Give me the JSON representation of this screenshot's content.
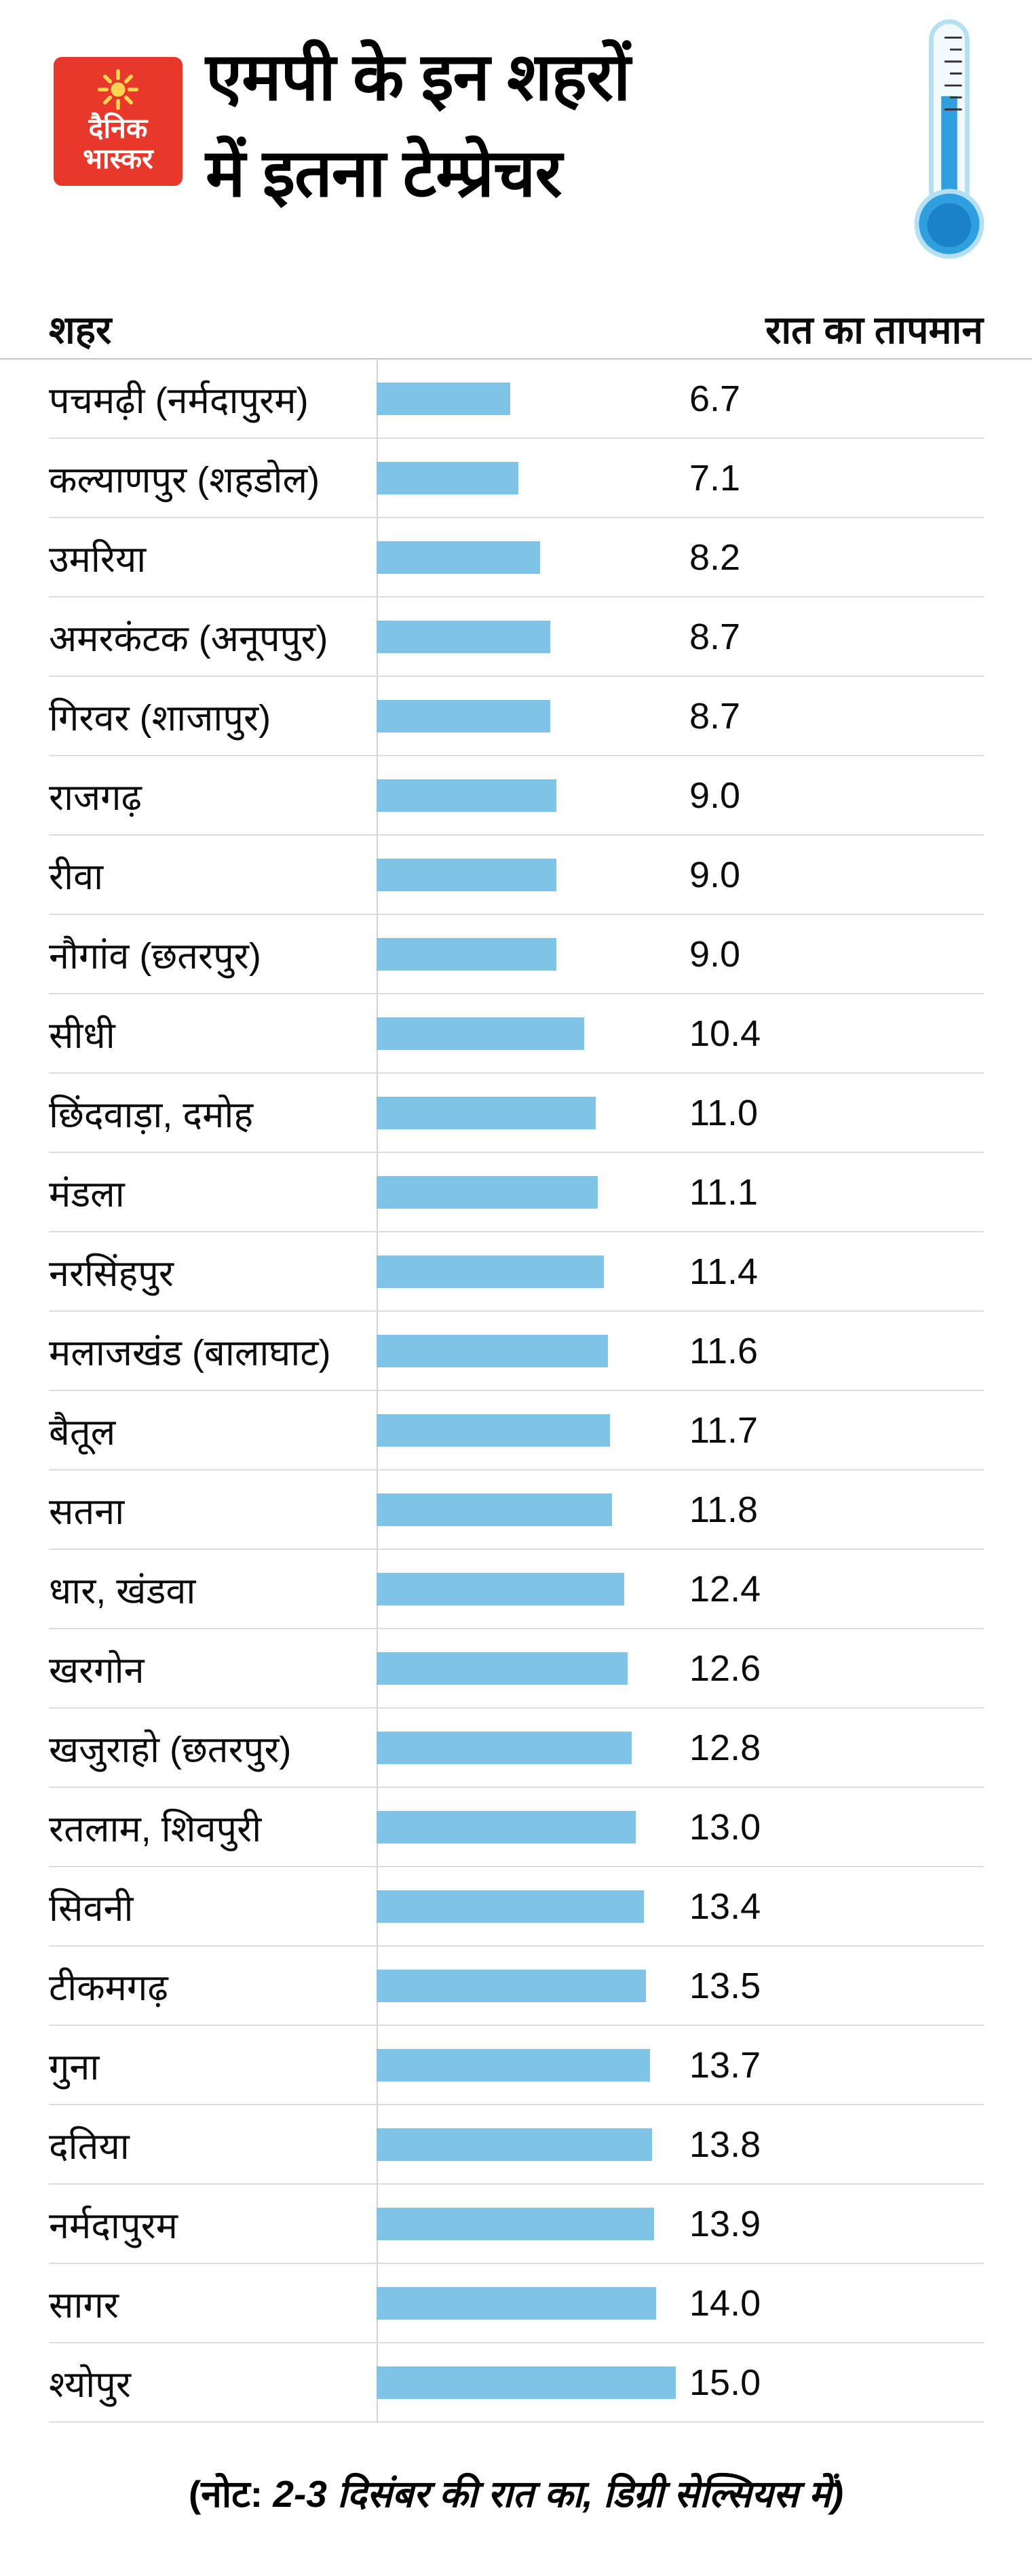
{
  "header": {
    "logo_line1": "दैनिक",
    "logo_line2": "भास्कर",
    "title_line1": "एमपी के इन शहरों",
    "title_line2": "में इतना टेम्प्रेचर"
  },
  "table": {
    "col_city": "शहर",
    "col_temp": "रात का तापमान"
  },
  "chart_data": {
    "type": "bar",
    "orientation": "horizontal",
    "title": "एमपी के इन शहरों में इतना टेम्प्रेचर",
    "xlabel": "रात का तापमान (डिग्री सेल्सियस)",
    "ylabel": "शहर",
    "xlim": [
      0,
      15
    ],
    "grid": false,
    "legend": "none",
    "bar_color": "#7fc3e6",
    "categories": [
      "पचमढ़ी (नर्मदापुरम)",
      "कल्याणपुर (शहडोल)",
      "उमरिया",
      "अमरकंटक (अनूपपुर)",
      "गिरवर (शाजापुर)",
      "राजगढ़",
      "रीवा",
      "नौगांव (छतरपुर)",
      "सीधी",
      "छिंदवाड़ा, दमोह",
      "मंडला",
      "नरसिंहपुर",
      "मलाजखंड (बालाघाट)",
      "बैतूल",
      "सतना",
      "धार, खंडवा",
      "खरगोन",
      "खजुराहो (छतरपुर)",
      "रतलाम, शिवपुरी",
      "सिवनी",
      "टीकमगढ़",
      "गुना",
      "दतिया",
      "नर्मदापुरम",
      "सागर",
      "श्योपुर"
    ],
    "values": [
      6.7,
      7.1,
      8.2,
      8.7,
      8.7,
      9.0,
      9.0,
      9.0,
      10.4,
      11.0,
      11.1,
      11.4,
      11.6,
      11.7,
      11.8,
      12.4,
      12.6,
      12.8,
      13.0,
      13.4,
      13.5,
      13.7,
      13.8,
      13.9,
      14.0,
      15.0
    ],
    "value_labels": [
      "6.7",
      "7.1",
      "8.2",
      "8.7",
      "8.7",
      "9.0",
      "9.0",
      "9.0",
      "10.4",
      "11.0",
      "11.1",
      "11.4",
      "11.6",
      "11.7",
      "11.8",
      "12.4",
      "12.6",
      "12.8",
      "13.0",
      "13.4",
      "13.5",
      "13.7",
      "13.8",
      "13.9",
      "14.0",
      "15.0"
    ]
  },
  "footer": {
    "note_label": "(नोट:",
    "note_text": "2-3 दिसंबर की रात का, डिग्री सेल्सियस में)"
  },
  "icons": {
    "thermometer": "thermometer-icon",
    "sun": "sun-icon"
  },
  "colors": {
    "bar": "#7fc3e6",
    "logo_red": "#e8382c",
    "thermometer_blue": "#2f9fdf",
    "thermometer_outline": "#b5e0f2",
    "divider": "#dcdcdc",
    "axis_line": "#d4d4d4",
    "text": "#0b0b0b"
  }
}
